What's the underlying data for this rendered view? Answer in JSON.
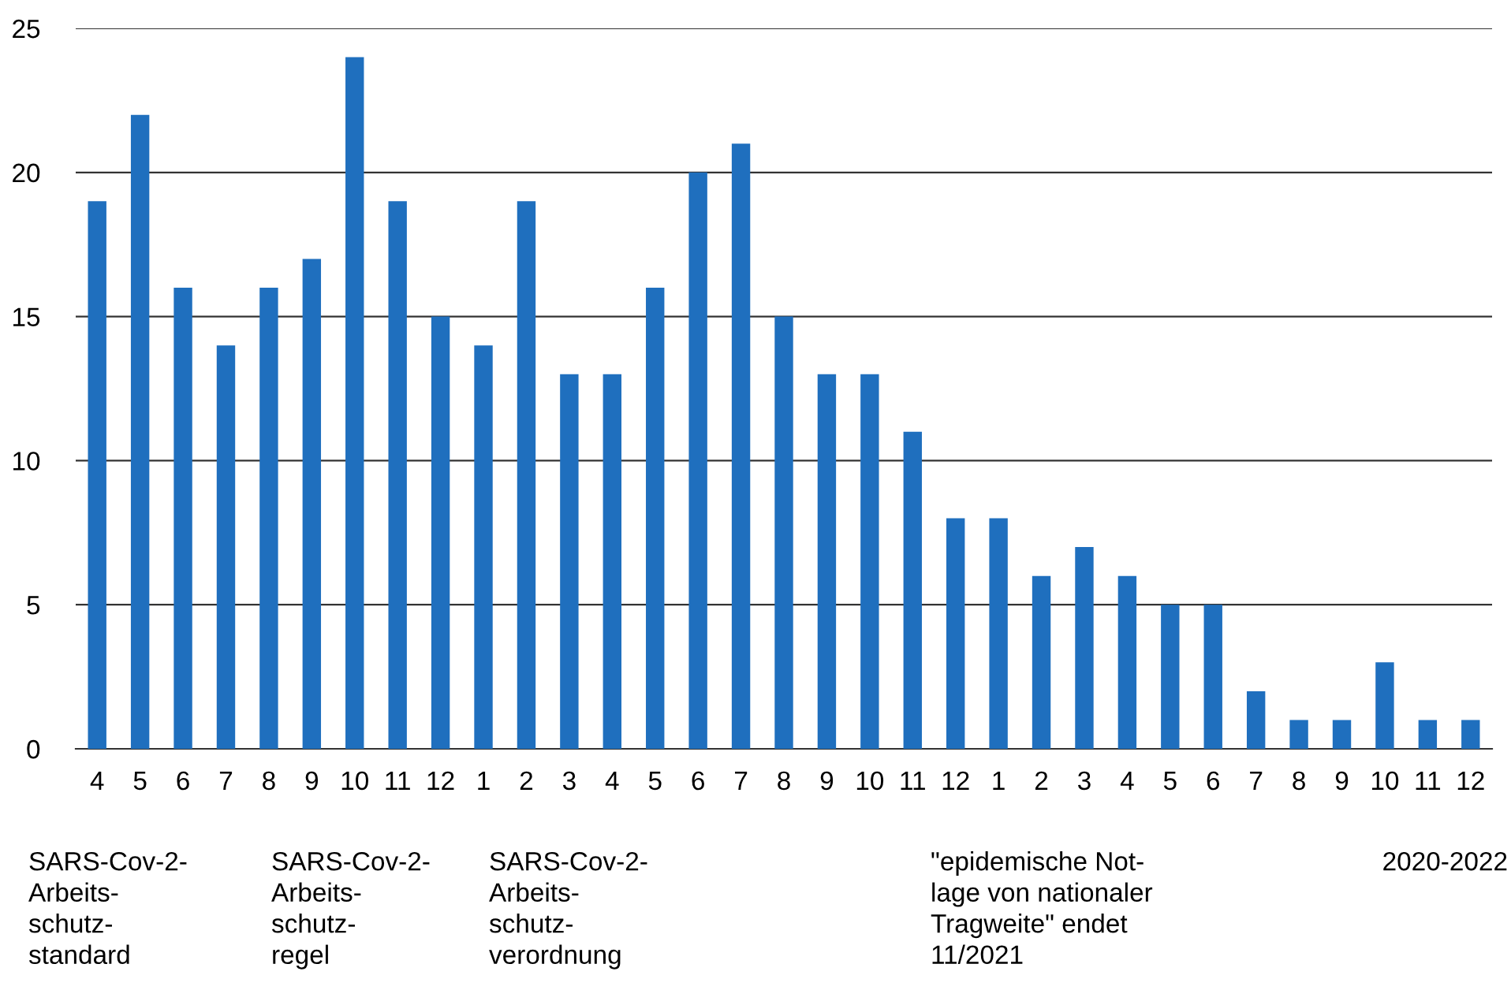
{
  "chart_data": {
    "type": "bar",
    "categories": [
      "4",
      "5",
      "6",
      "7",
      "8",
      "9",
      "10",
      "11",
      "12",
      "1",
      "2",
      "3",
      "4",
      "5",
      "6",
      "7",
      "8",
      "9",
      "10",
      "11",
      "12",
      "1",
      "2",
      "3",
      "4",
      "5",
      "6",
      "7",
      "8",
      "9",
      "10",
      "11",
      "12"
    ],
    "values": [
      19,
      22,
      16,
      14,
      16,
      17,
      24,
      19,
      15,
      14,
      19,
      13,
      13,
      16,
      20,
      21,
      15,
      13,
      13,
      11,
      8,
      8,
      6,
      7,
      6,
      5,
      5,
      2,
      1,
      1,
      3,
      1,
      1
    ],
    "color": "#1f6fbe",
    "ylim": [
      0,
      25
    ],
    "yticks": [
      0,
      5,
      10,
      15,
      20,
      25
    ],
    "grid": "y",
    "annotations": [
      "SARS-Cov-2-\nArbeits-\nschutz-\nstandard",
      "SARS-Cov-2-\nArbeits-\nschutz-\nregel",
      "SARS-Cov-2-\nArbeits-\nschutz-\nverordnung",
      "\"epidemische Not-\nlage von nationaler\nTragweite\" endet\n11/2021",
      "2020-2022"
    ]
  }
}
